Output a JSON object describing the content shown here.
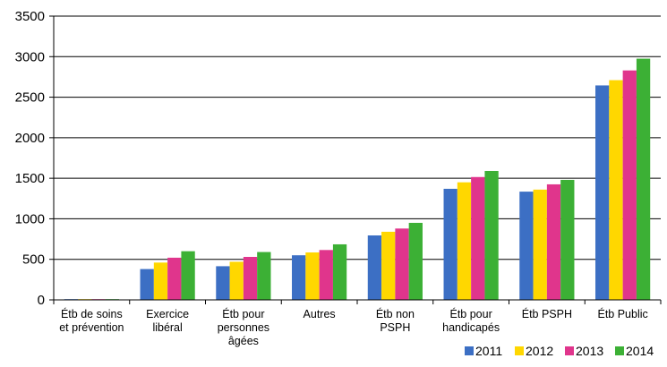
{
  "chart_data": {
    "type": "bar",
    "title": "",
    "xlabel": "",
    "ylabel": "",
    "ylim": [
      0,
      3500
    ],
    "yticks": [
      0,
      500,
      1000,
      1500,
      2000,
      2500,
      3000,
      3500
    ],
    "grid": "horizontal",
    "legend_position": "bottom-right",
    "categories": [
      [
        "Étb de soins",
        "et prévention"
      ],
      [
        "Exercice",
        "libéral"
      ],
      [
        "Étb pour",
        "personnes",
        "âgées"
      ],
      [
        "Autres"
      ],
      [
        "Étb non",
        "PSPH"
      ],
      [
        "Étb pour",
        "handicapés"
      ],
      [
        "Étb PSPH"
      ],
      [
        "Étb Public"
      ]
    ],
    "series": [
      {
        "name": "2011",
        "color": "#3c6fc4",
        "values": [
          5,
          380,
          415,
          550,
          795,
          1370,
          1335,
          2645
        ]
      },
      {
        "name": "2012",
        "color": "#ffd700",
        "values": [
          5,
          460,
          470,
          585,
          840,
          1450,
          1360,
          2710
        ]
      },
      {
        "name": "2013",
        "color": "#e0358c",
        "values": [
          5,
          520,
          530,
          615,
          880,
          1515,
          1425,
          2830
        ]
      },
      {
        "name": "2014",
        "color": "#3cb035",
        "values": [
          5,
          600,
          590,
          685,
          950,
          1590,
          1480,
          2975
        ]
      }
    ]
  }
}
